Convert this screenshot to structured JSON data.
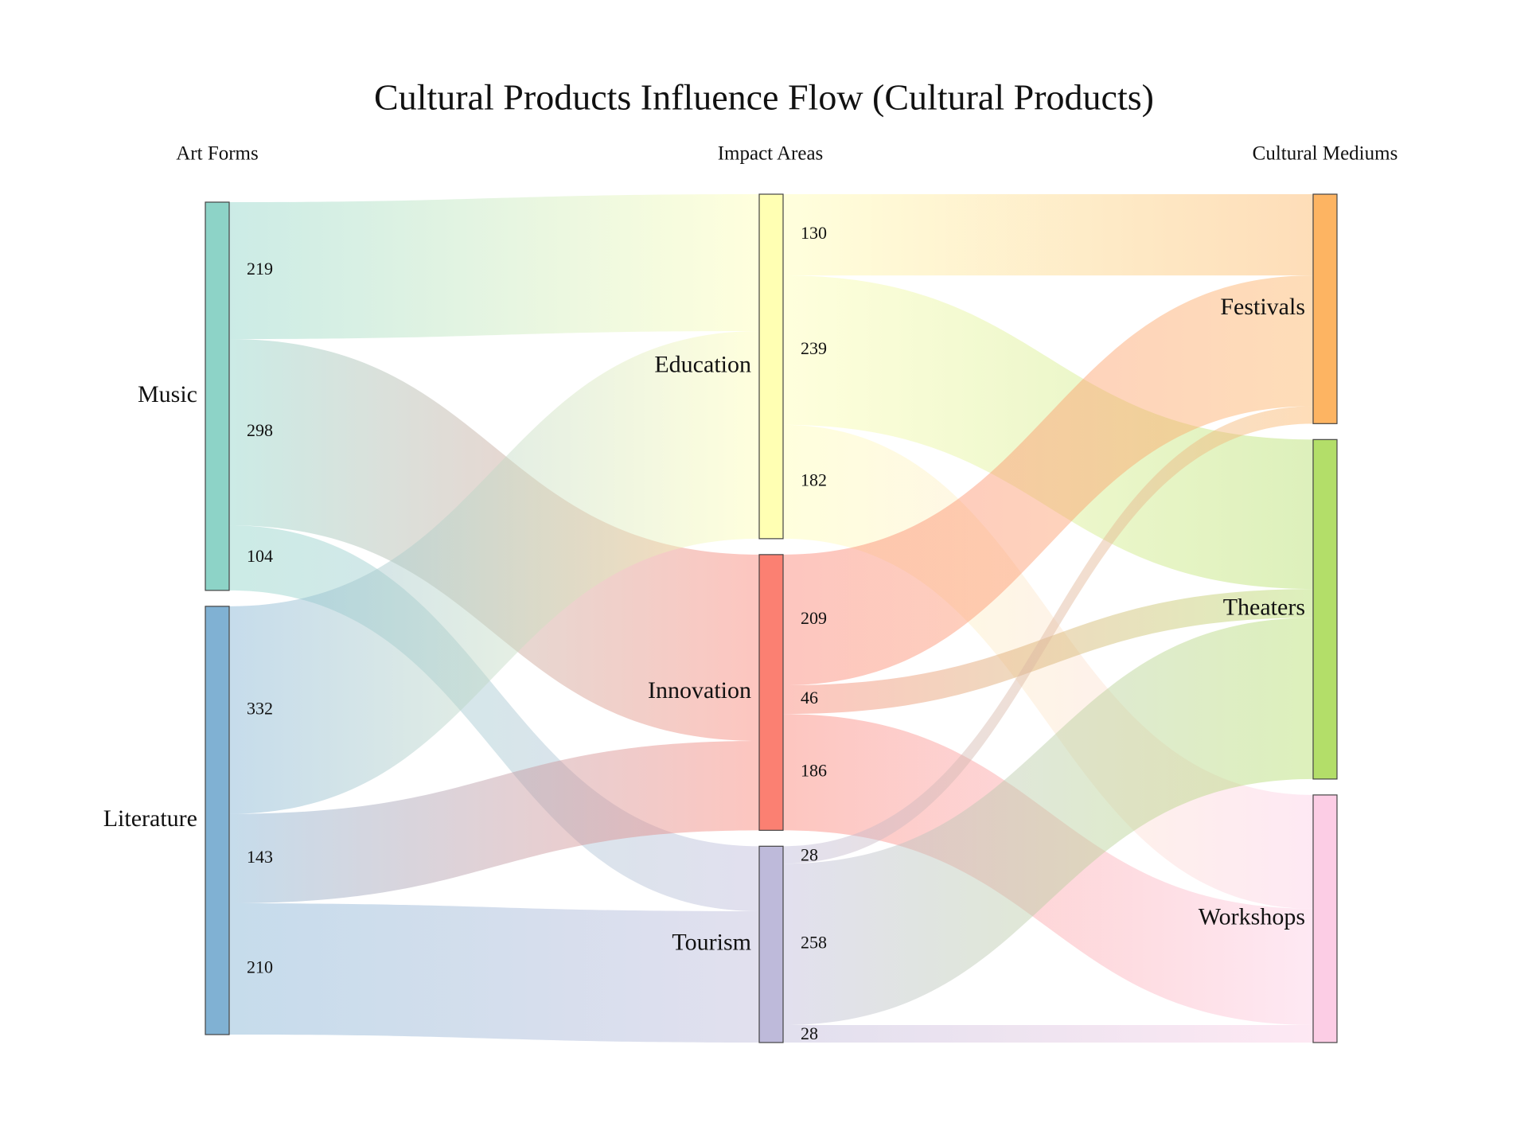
{
  "title": "Cultural Products Influence Flow (Cultural Products)",
  "column_headers": [
    "Art Forms",
    "Impact Areas",
    "Cultural Mediums"
  ],
  "chart_data": {
    "type": "sankey",
    "nodes": [
      {
        "name": "Music",
        "column": 0,
        "color": "#8dd3c7"
      },
      {
        "name": "Literature",
        "column": 0,
        "color": "#80b1d3"
      },
      {
        "name": "Education",
        "column": 1,
        "color": "#ffffb3"
      },
      {
        "name": "Innovation",
        "column": 1,
        "color": "#fb8072"
      },
      {
        "name": "Tourism",
        "column": 1,
        "color": "#bebada"
      },
      {
        "name": "Festivals",
        "column": 2,
        "color": "#fdb462"
      },
      {
        "name": "Theaters",
        "column": 2,
        "color": "#b3de69"
      },
      {
        "name": "Workshops",
        "column": 2,
        "color": "#fccde5"
      }
    ],
    "links": [
      {
        "source": "Music",
        "target": "Education",
        "value": 219
      },
      {
        "source": "Music",
        "target": "Innovation",
        "value": 298
      },
      {
        "source": "Music",
        "target": "Tourism",
        "value": 104
      },
      {
        "source": "Literature",
        "target": "Education",
        "value": 332
      },
      {
        "source": "Literature",
        "target": "Innovation",
        "value": 143
      },
      {
        "source": "Literature",
        "target": "Tourism",
        "value": 210
      },
      {
        "source": "Education",
        "target": "Festivals",
        "value": 130
      },
      {
        "source": "Education",
        "target": "Theaters",
        "value": 239
      },
      {
        "source": "Education",
        "target": "Workshops",
        "value": 182
      },
      {
        "source": "Innovation",
        "target": "Festivals",
        "value": 209
      },
      {
        "source": "Innovation",
        "target": "Theaters",
        "value": 46
      },
      {
        "source": "Innovation",
        "target": "Workshops",
        "value": 186
      },
      {
        "source": "Tourism",
        "target": "Festivals",
        "value": 28
      },
      {
        "source": "Tourism",
        "target": "Theaters",
        "value": 258
      },
      {
        "source": "Tourism",
        "target": "Workshops",
        "value": 28
      }
    ]
  }
}
